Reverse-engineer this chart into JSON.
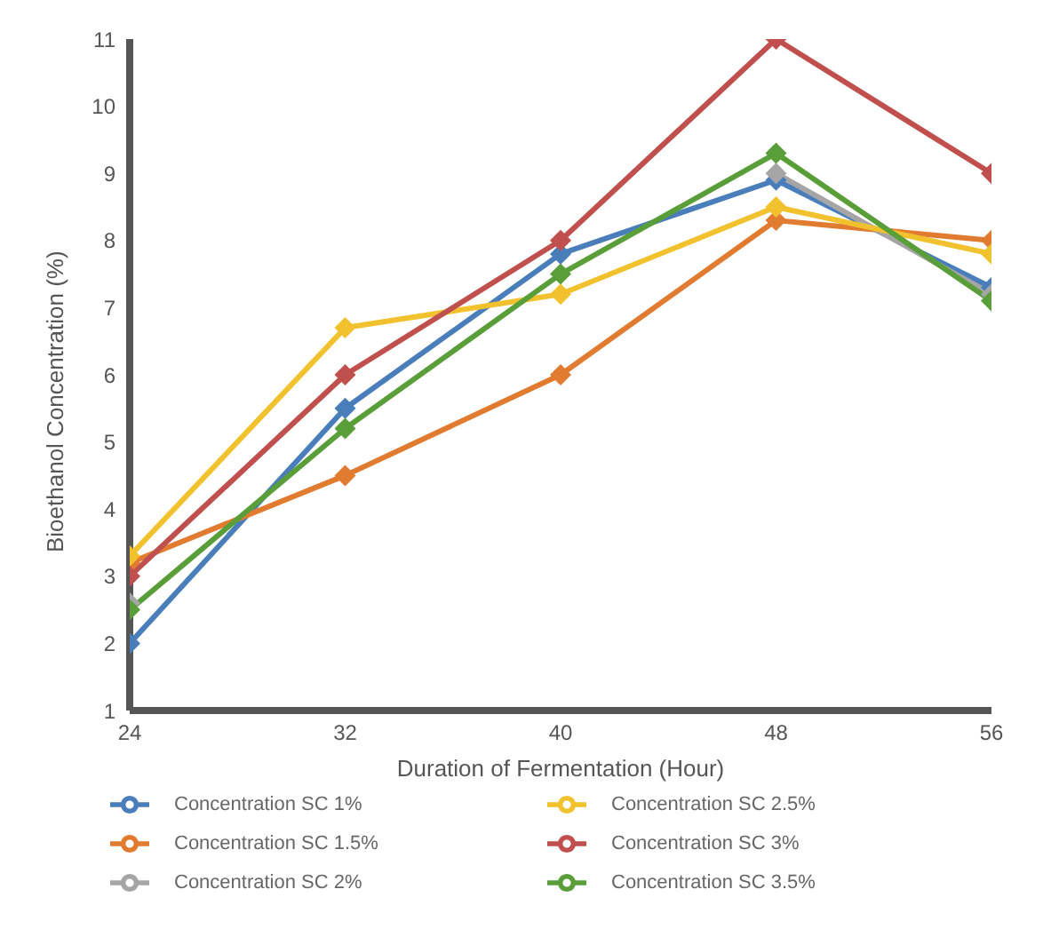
{
  "chart_data": {
    "type": "line",
    "xlabel": "Duration of Fermentation (Hour)",
    "ylabel": "Bioethanol Concentration (%)",
    "x": [
      24,
      32,
      40,
      48,
      56
    ],
    "xlim": [
      24,
      56
    ],
    "xticks": [
      24,
      32,
      40,
      48,
      56
    ],
    "ylim": [
      1,
      11
    ],
    "yticks": [
      1,
      2,
      3,
      4,
      5,
      6,
      7,
      8,
      9,
      10,
      11
    ],
    "grid": false,
    "legend": "bottom",
    "marker": "diamond",
    "line_style": "solid",
    "series": [
      {
        "name": "Concentration SC 1%",
        "color": "#4a7ebb",
        "values": [
          2,
          5.5,
          7.8,
          8.9,
          7.3
        ]
      },
      {
        "name": "Concentration SC 1.5%",
        "color": "#e07b30",
        "values": [
          3.2,
          4.5,
          6,
          8.3,
          8
        ]
      },
      {
        "name": "Concentration SC 2%",
        "color": "#a5a5a5",
        "values": [
          2.6,
          null,
          null,
          9,
          7.2
        ]
      },
      {
        "name": "Concentration SC 2.5%",
        "color": "#f2c12e",
        "values": [
          3.3,
          6.7,
          7.2,
          8.5,
          7.8
        ]
      },
      {
        "name": "Concentration SC 3%",
        "color": "#c0504d",
        "values": [
          3,
          6,
          8,
          11,
          9
        ]
      },
      {
        "name": "Concentration SC 3.5%",
        "color": "#5a9e3a",
        "values": [
          2.5,
          5.2,
          7.5,
          9.3,
          7.1
        ]
      }
    ]
  }
}
